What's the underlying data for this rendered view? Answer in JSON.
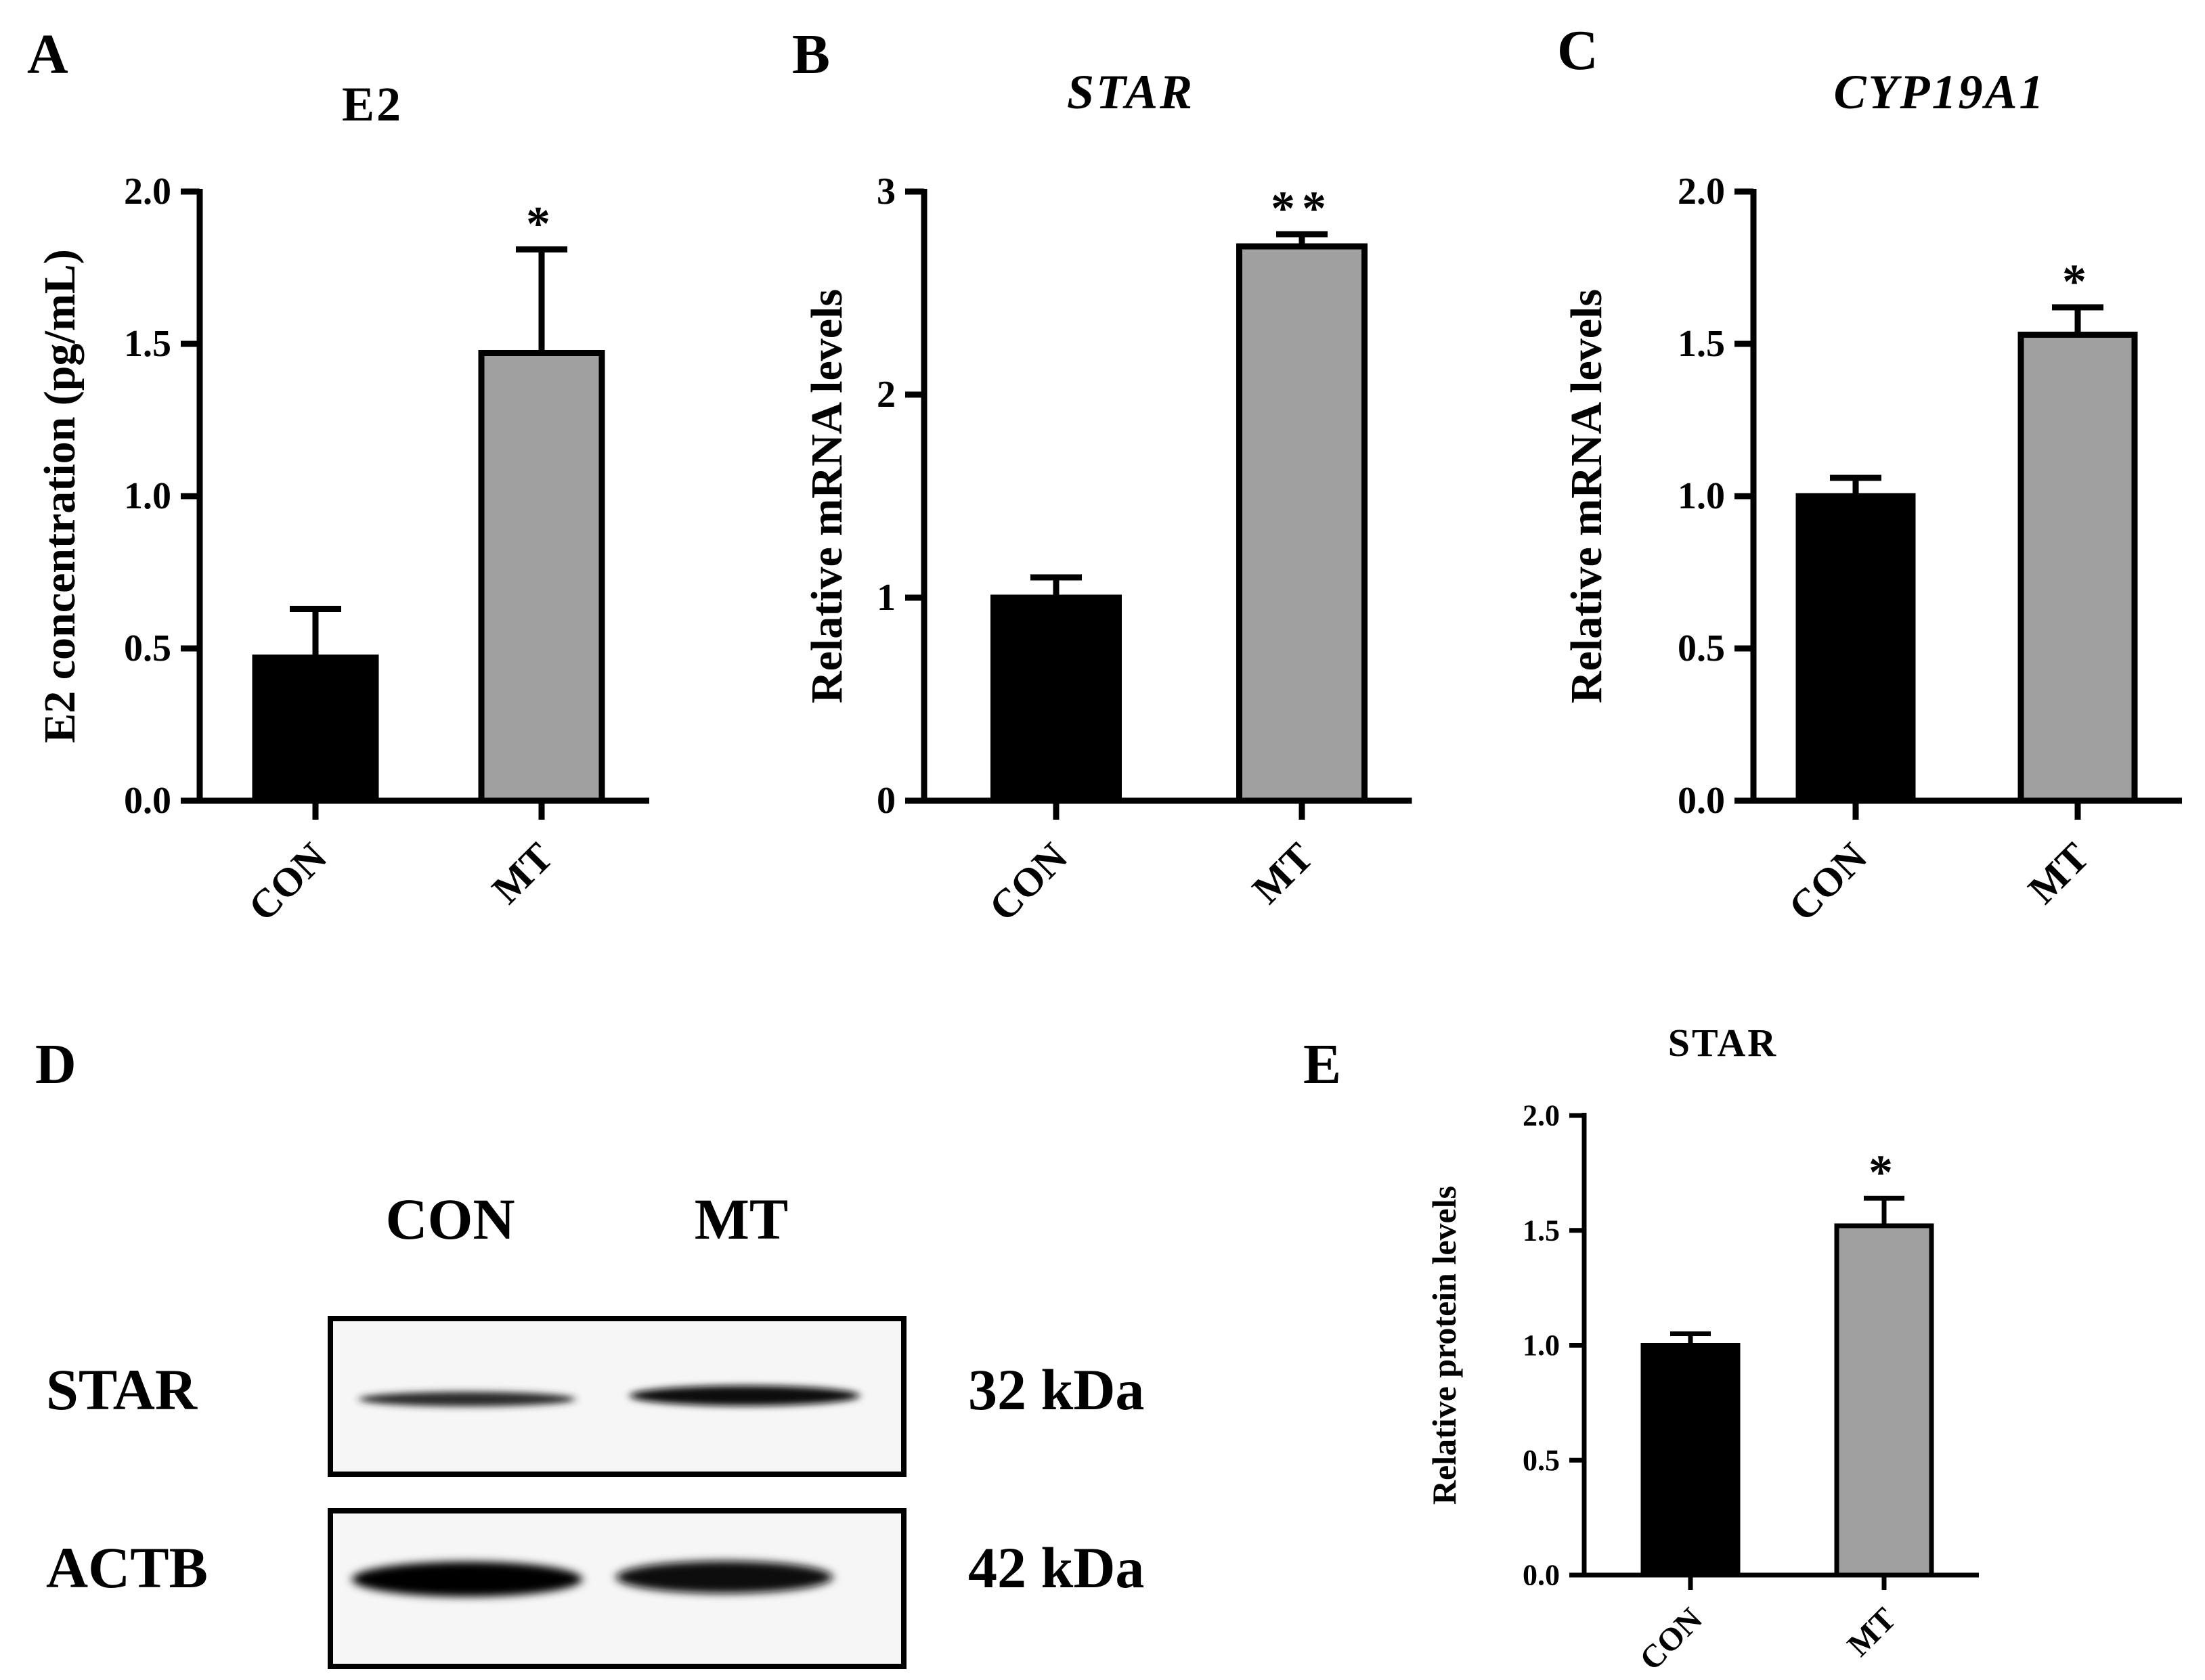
{
  "panels": {
    "A": "A",
    "B": "B",
    "C": "C",
    "D": "D",
    "E": "E"
  },
  "chart_data": [
    {
      "id": "A",
      "type": "bar",
      "title": "E2",
      "title_italic": false,
      "ylabel": "E2 concentration (pg/mL)",
      "xlabel": "",
      "categories": [
        "CON",
        "MT"
      ],
      "values": [
        0.47,
        1.47
      ],
      "errors": [
        0.16,
        0.34
      ],
      "bar_colors": [
        "#000000",
        "#a0a0a0"
      ],
      "significance": [
        "",
        "*"
      ],
      "ylim": [
        0,
        2.0
      ],
      "yticks": [
        0.0,
        0.5,
        1.0,
        1.5,
        2.0
      ],
      "ytick_labels": [
        "0.0",
        "0.5",
        "1.0",
        "1.5",
        "2.0"
      ]
    },
    {
      "id": "B",
      "type": "bar",
      "title": "STAR",
      "title_italic": true,
      "ylabel": "Relative mRNA levels",
      "xlabel": "",
      "categories": [
        "CON",
        "MT"
      ],
      "values": [
        1.0,
        2.73
      ],
      "errors": [
        0.1,
        0.06
      ],
      "bar_colors": [
        "#000000",
        "#a0a0a0"
      ],
      "significance": [
        "",
        "**"
      ],
      "ylim": [
        0,
        3
      ],
      "yticks": [
        0,
        1,
        2,
        3
      ],
      "ytick_labels": [
        "0",
        "1",
        "2",
        "3"
      ]
    },
    {
      "id": "C",
      "type": "bar",
      "title": "CYP19A1",
      "title_italic": true,
      "ylabel": "Relative mRNA levels",
      "xlabel": "",
      "categories": [
        "CON",
        "MT"
      ],
      "values": [
        1.0,
        1.53
      ],
      "errors": [
        0.06,
        0.09
      ],
      "bar_colors": [
        "#000000",
        "#a0a0a0"
      ],
      "significance": [
        "",
        "*"
      ],
      "ylim": [
        0,
        2.0
      ],
      "yticks": [
        0.0,
        0.5,
        1.0,
        1.5,
        2.0
      ],
      "ytick_labels": [
        "0.0",
        "0.5",
        "1.0",
        "1.5",
        "2.0"
      ]
    },
    {
      "id": "E",
      "type": "bar",
      "title": "STAR",
      "title_italic": false,
      "ylabel": "Relative protein levels",
      "xlabel": "",
      "categories": [
        "CON",
        "MT"
      ],
      "values": [
        1.0,
        1.52
      ],
      "errors": [
        0.05,
        0.12
      ],
      "bar_colors": [
        "#000000",
        "#a0a0a0"
      ],
      "significance": [
        "",
        "*"
      ],
      "ylim": [
        0,
        2.0
      ],
      "yticks": [
        0.0,
        0.5,
        1.0,
        1.5,
        2.0
      ],
      "ytick_labels": [
        "0.0",
        "0.5",
        "1.0",
        "1.5",
        "2.0"
      ]
    }
  ],
  "blot": {
    "lanes": [
      "CON",
      "MT"
    ],
    "rows": [
      {
        "protein": "STAR",
        "size": "32 kDa"
      },
      {
        "protein": "ACTB",
        "size": "42 kDa"
      }
    ]
  }
}
